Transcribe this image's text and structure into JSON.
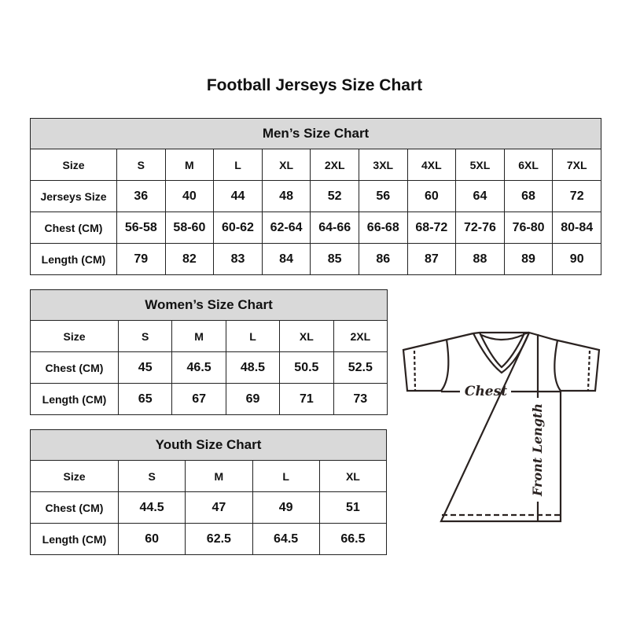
{
  "title": "Football Jerseys Size Chart",
  "colors": {
    "header_bg": "#d9d9d9",
    "border": "#222222"
  },
  "men": {
    "title": "Men’s Size Chart",
    "rows": [
      {
        "label": "Size",
        "values": [
          "S",
          "M",
          "L",
          "XL",
          "2XL",
          "3XL",
          "4XL",
          "5XL",
          "6XL",
          "7XL"
        ]
      },
      {
        "label": "Jerseys Size",
        "values": [
          "36",
          "40",
          "44",
          "48",
          "52",
          "56",
          "60",
          "64",
          "68",
          "72"
        ]
      },
      {
        "label": "Chest (CM)",
        "values": [
          "56-58",
          "58-60",
          "60-62",
          "62-64",
          "64-66",
          "66-68",
          "68-72",
          "72-76",
          "76-80",
          "80-84"
        ]
      },
      {
        "label": "Length (CM)",
        "values": [
          "79",
          "82",
          "83",
          "84",
          "85",
          "86",
          "87",
          "88",
          "89",
          "90"
        ]
      }
    ]
  },
  "women": {
    "title": "Women’s Size Chart",
    "rows": [
      {
        "label": "Size",
        "values": [
          "S",
          "M",
          "L",
          "XL",
          "2XL"
        ]
      },
      {
        "label": "Chest (CM)",
        "values": [
          "45",
          "46.5",
          "48.5",
          "50.5",
          "52.5"
        ]
      },
      {
        "label": "Length (CM)",
        "values": [
          "65",
          "67",
          "69",
          "71",
          "73"
        ]
      }
    ]
  },
  "youth": {
    "title": "Youth Size Chart",
    "rows": [
      {
        "label": "Size",
        "values": [
          "S",
          "M",
          "L",
          "XL"
        ]
      },
      {
        "label": "Chest (CM)",
        "values": [
          "44.5",
          "47",
          "49",
          "51"
        ]
      },
      {
        "label": "Length (CM)",
        "values": [
          "60",
          "62.5",
          "64.5",
          "66.5"
        ]
      }
    ]
  },
  "diagram": {
    "chest_label": "Chest",
    "length_label": "Front Length"
  }
}
